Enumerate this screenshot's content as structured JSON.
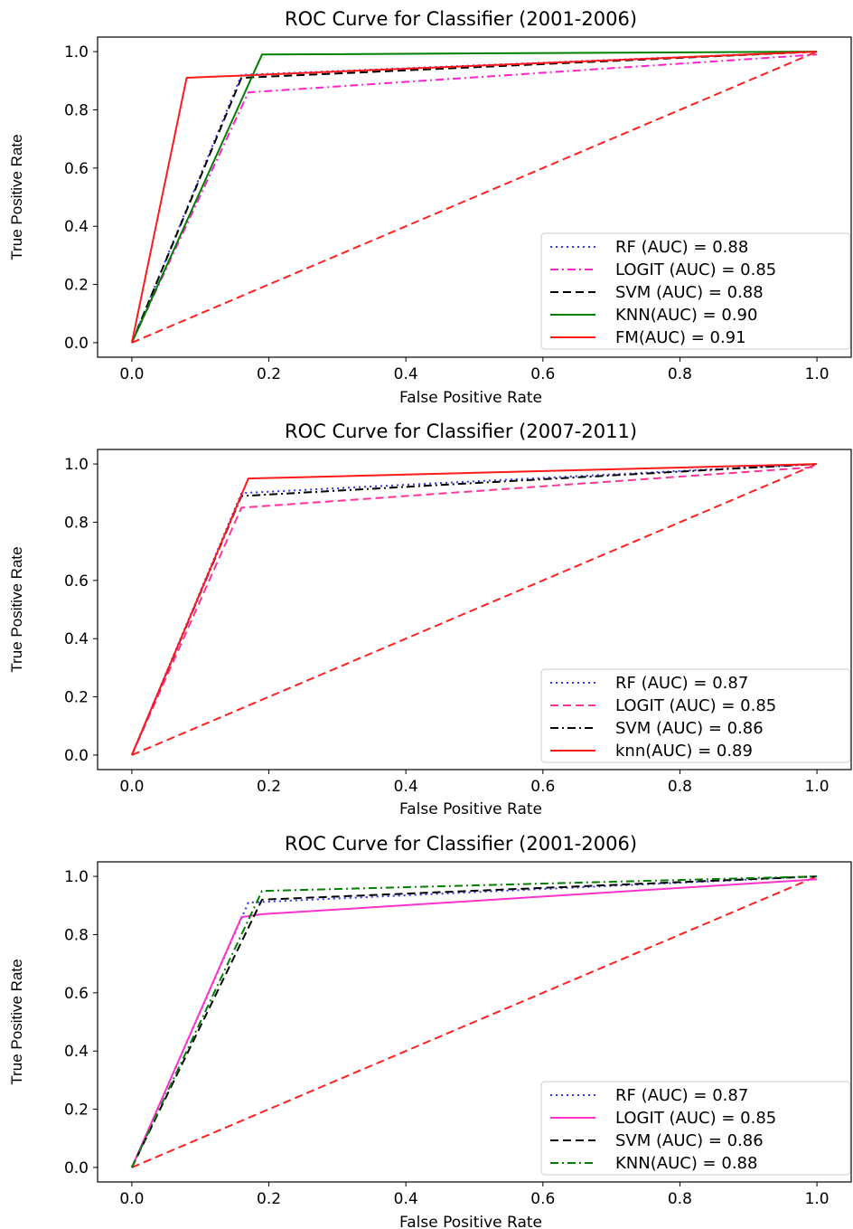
{
  "chart_data": [
    {
      "type": "line",
      "title": "ROC Curve for Classifier (2001-2006)",
      "xlabel": "False Positive Rate",
      "ylabel": "True Positive Rate",
      "xlim": [
        -0.05,
        1.05
      ],
      "ylim": [
        -0.05,
        1.05
      ],
      "xticks": [
        "0.0",
        "0.2",
        "0.4",
        "0.6",
        "0.8",
        "1.0"
      ],
      "yticks": [
        "0.0",
        "0.2",
        "0.4",
        "0.6",
        "0.8",
        "1.0"
      ],
      "legend_position": "lower right",
      "reference_line": {
        "x": [
          0,
          1
        ],
        "y": [
          0,
          1
        ],
        "color": "#ff2020",
        "style": "dashed"
      },
      "series": [
        {
          "name": "RF (AUC) = 0.88",
          "x": [
            0,
            0.16,
            1
          ],
          "y": [
            0,
            0.92,
            1
          ],
          "color": "#3333ff",
          "style": "dotted"
        },
        {
          "name": "LOGIT (AUC) = 0.85",
          "x": [
            0,
            0.17,
            1
          ],
          "y": [
            0,
            0.86,
            0.99
          ],
          "color": "#ff22cc",
          "style": "dashdot"
        },
        {
          "name": "SVM (AUC) = 0.88",
          "x": [
            0,
            0.16,
            1
          ],
          "y": [
            0,
            0.91,
            1
          ],
          "color": "#000000",
          "style": "dashed"
        },
        {
          "name": " KNN(AUC) = 0.90",
          "x": [
            0,
            0.19,
            1
          ],
          "y": [
            0,
            0.99,
            1
          ],
          "color": "#008000",
          "style": "solid"
        },
        {
          "name": " FM(AUC) = 0.91",
          "x": [
            0,
            0.08,
            1
          ],
          "y": [
            0,
            0.91,
            1
          ],
          "color": "#ff1a1a",
          "style": "solid"
        }
      ]
    },
    {
      "type": "line",
      "title": "ROC Curve for Classifier (2007-2011)",
      "xlabel": "False Positive Rate",
      "ylabel": "True Positive Rate",
      "xlim": [
        -0.05,
        1.05
      ],
      "ylim": [
        -0.05,
        1.05
      ],
      "xticks": [
        "0.0",
        "0.2",
        "0.4",
        "0.6",
        "0.8",
        "1.0"
      ],
      "yticks": [
        "0.0",
        "0.2",
        "0.4",
        "0.6",
        "0.8",
        "1.0"
      ],
      "legend_position": "lower right",
      "reference_line": {
        "x": [
          0,
          1
        ],
        "y": [
          0,
          1
        ],
        "color": "#ff2020",
        "style": "dashed"
      },
      "series": [
        {
          "name": "RF (AUC) = 0.87",
          "x": [
            0,
            0.16,
            1
          ],
          "y": [
            0,
            0.9,
            1
          ],
          "color": "#3333ff",
          "style": "dotted"
        },
        {
          "name": "LOGIT (AUC) = 0.85",
          "x": [
            0,
            0.16,
            1
          ],
          "y": [
            0,
            0.85,
            0.99
          ],
          "color": "#ff3399",
          "style": "dashed"
        },
        {
          "name": "SVM (AUC) = 0.86",
          "x": [
            0,
            0.16,
            1
          ],
          "y": [
            0,
            0.89,
            1
          ],
          "color": "#000000",
          "style": "dashdot"
        },
        {
          "name": " knn(AUC) = 0.89",
          "x": [
            0,
            0.17,
            1
          ],
          "y": [
            0,
            0.95,
            1
          ],
          "color": "#ff1a1a",
          "style": "solid"
        }
      ]
    },
    {
      "type": "line",
      "title": "ROC Curve for Classifier (2001-2006)",
      "xlabel": "False Positive Rate",
      "ylabel": "True Positive Rate",
      "xlim": [
        -0.05,
        1.05
      ],
      "ylim": [
        -0.05,
        1.05
      ],
      "xticks": [
        "0.0",
        "0.2",
        "0.4",
        "0.6",
        "0.8",
        "1.0"
      ],
      "yticks": [
        "0.0",
        "0.2",
        "0.4",
        "0.6",
        "0.8",
        "1.0"
      ],
      "legend_position": "lower right",
      "reference_line": {
        "x": [
          0,
          1
        ],
        "y": [
          0,
          1
        ],
        "color": "#ff2020",
        "style": "dashed"
      },
      "series": [
        {
          "name": "RF (AUC) = 0.87",
          "x": [
            0,
            0.17,
            1
          ],
          "y": [
            0,
            0.91,
            1
          ],
          "color": "#3333ff",
          "style": "dotted"
        },
        {
          "name": "LOGIT (AUC) = 0.85",
          "x": [
            0,
            0.16,
            0.19,
            1
          ],
          "y": [
            0,
            0.86,
            0.87,
            0.99
          ],
          "color": "#ff33cc",
          "style": "solid"
        },
        {
          "name": "SVM (AUC) = 0.86",
          "x": [
            0,
            0.19,
            1
          ],
          "y": [
            0,
            0.92,
            1
          ],
          "color": "#000000",
          "style": "dashed"
        },
        {
          "name": " KNN(AUC) = 0.88",
          "x": [
            0,
            0.19,
            1
          ],
          "y": [
            0,
            0.95,
            1
          ],
          "color": "#008000",
          "style": "dashdot"
        }
      ]
    }
  ]
}
